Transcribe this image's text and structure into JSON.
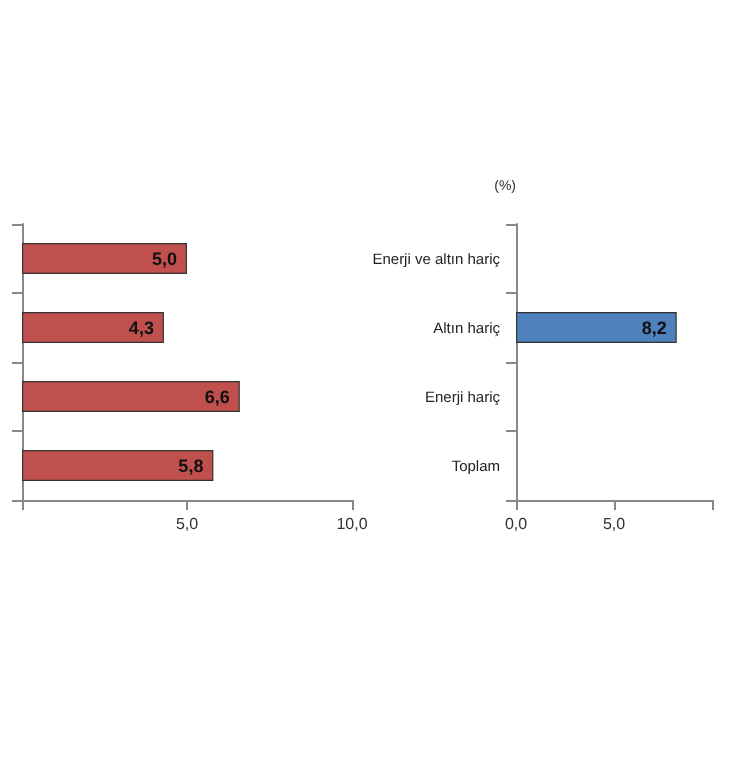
{
  "chart_data": [
    {
      "type": "bar",
      "orientation": "horizontal",
      "categories": [
        null,
        null,
        null,
        null
      ],
      "values": [
        5.0,
        4.3,
        6.6,
        5.8
      ],
      "color": "#c0504d",
      "value_labels": [
        "5,0",
        "4,3",
        "6,6",
        "5,8"
      ],
      "xlim": [
        0,
        10
      ],
      "xticks": [
        {
          "value": 0,
          "label": null
        },
        {
          "value": 5,
          "label": "5,0"
        },
        {
          "value": 10,
          "label": "10,0"
        }
      ]
    },
    {
      "type": "bar",
      "orientation": "horizontal",
      "ylabel": "(%)",
      "categories": [
        "Enerji ve altın hariç",
        "Altın hariç",
        "Enerji hariç",
        "Toplam"
      ],
      "values": [
        null,
        8.2,
        null,
        null
      ],
      "color": "#4f81bd",
      "value_labels": [
        null,
        "8,2",
        null,
        null
      ],
      "xlim": [
        0,
        10
      ],
      "xticks": [
        {
          "value": 0,
          "label": "0,0"
        },
        {
          "value": 5,
          "label": "5,0"
        },
        {
          "value": 10,
          "label": null
        }
      ]
    }
  ]
}
